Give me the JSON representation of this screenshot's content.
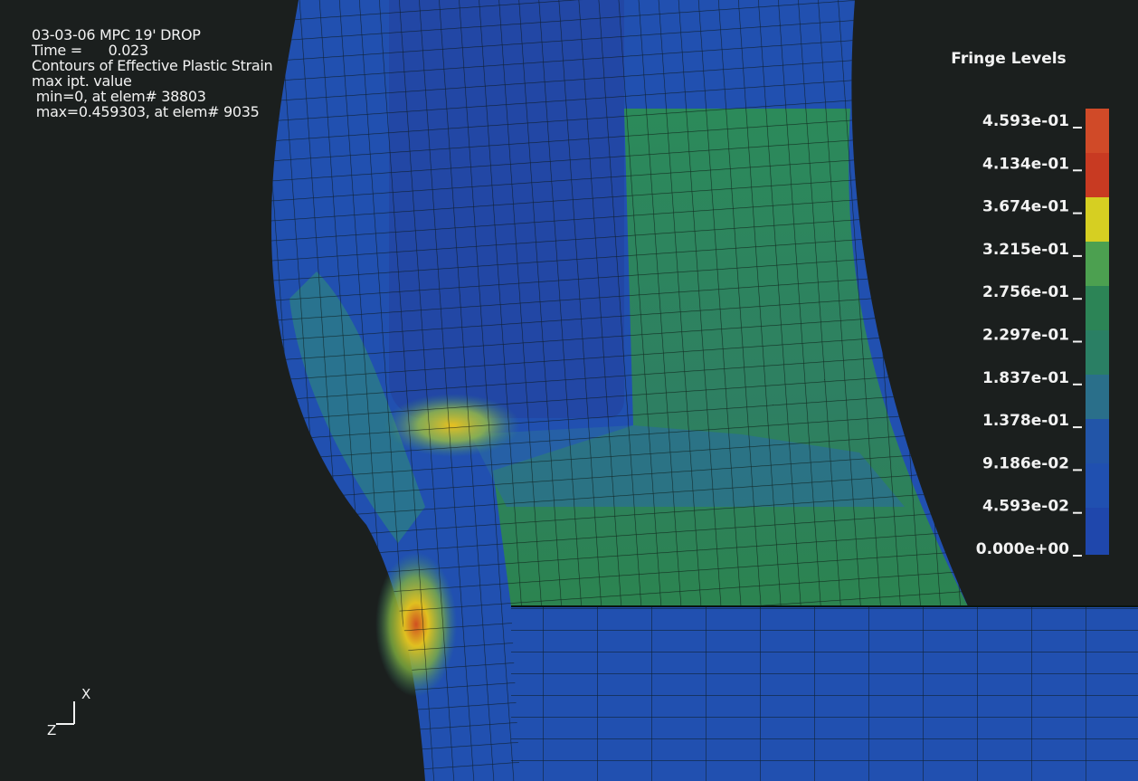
{
  "header": {
    "lines": [
      "03-03-06 MPC 19' DROP",
      "Time =      0.023",
      "Contours of Effective Plastic Strain",
      "max ipt. value",
      " min=0, at elem# 38803",
      " max=0.459303, at elem# 9035"
    ]
  },
  "legend": {
    "title": "Fringe Levels",
    "levels": [
      "4.593e-01",
      "4.134e-01",
      "3.674e-01",
      "3.215e-01",
      "2.756e-01",
      "2.297e-01",
      "1.837e-01",
      "1.378e-01",
      "9.186e-02",
      "4.593e-02",
      "0.000e+00"
    ]
  },
  "triad": {
    "x": "X",
    "z": "Z"
  }
}
